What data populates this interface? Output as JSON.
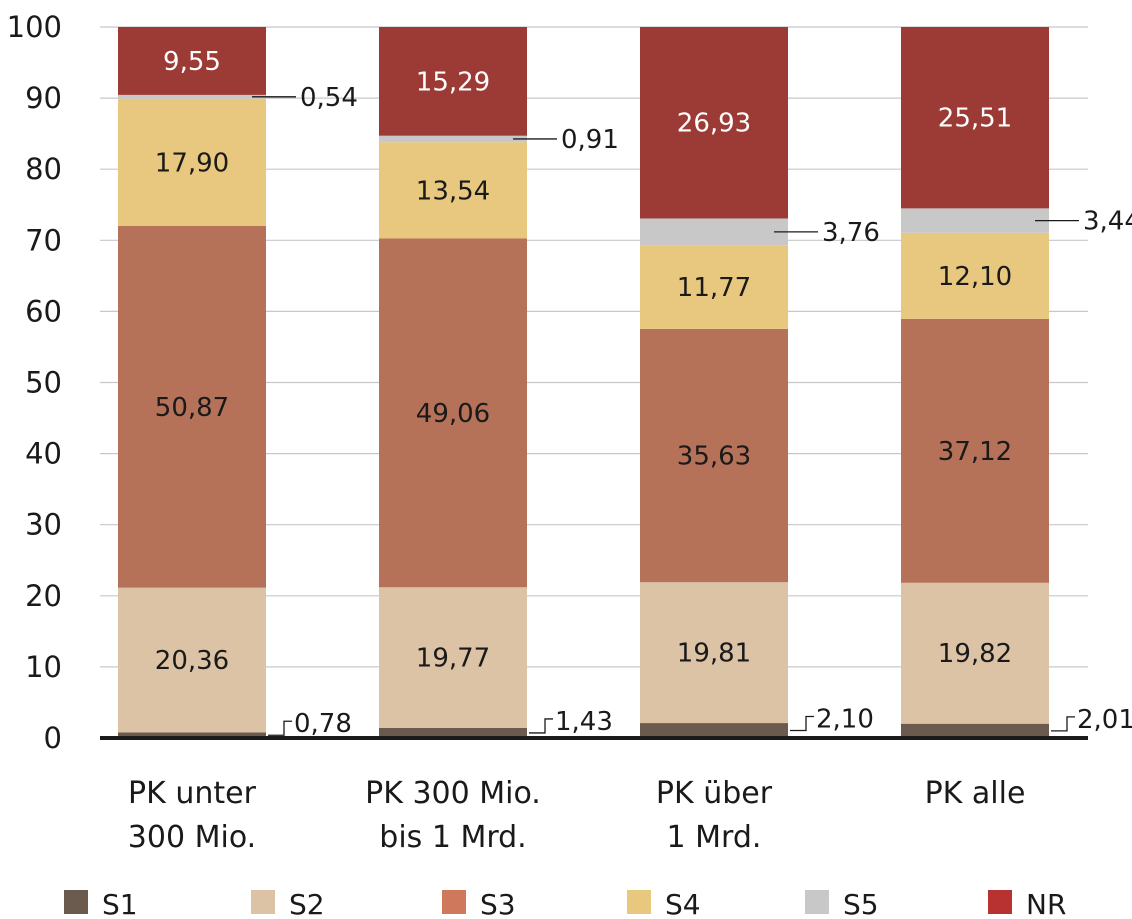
{
  "chart_data": {
    "type": "bar",
    "stacked": true,
    "title": "",
    "xlabel": "",
    "ylabel": "",
    "ylim": [
      0,
      100
    ],
    "yticks": [
      0,
      10,
      20,
      30,
      40,
      50,
      60,
      70,
      80,
      90,
      100
    ],
    "grid": true,
    "legend_position": "bottom",
    "categories": [
      [
        "PK unter",
        "300 Mio."
      ],
      [
        "PK 300 Mio.",
        "bis 1 Mrd."
      ],
      [
        "PK über",
        "1 Mrd."
      ],
      [
        "PK alle",
        ""
      ]
    ],
    "series": [
      {
        "name": "S1",
        "color": "#6b5a4e",
        "values": [
          0.78,
          1.43,
          2.1,
          2.01
        ],
        "labels": [
          "0,78",
          "1,43",
          "2,10",
          "2,01"
        ]
      },
      {
        "name": "S2",
        "color": "#dcc3a6",
        "values": [
          20.36,
          19.77,
          19.81,
          19.82
        ],
        "labels": [
          "20,36",
          "19,77",
          "19,81",
          "19,82"
        ]
      },
      {
        "name": "S3",
        "color": "#b57258",
        "values": [
          50.87,
          49.06,
          35.63,
          37.12
        ],
        "labels": [
          "50,87",
          "49,06",
          "35,63",
          "37,12"
        ]
      },
      {
        "name": "S4",
        "color": "#e8c77f",
        "values": [
          17.9,
          13.54,
          11.77,
          12.1
        ],
        "labels": [
          "17,90",
          "13,54",
          "11,77",
          "12,10"
        ]
      },
      {
        "name": "S5",
        "color": "#c8c8c8",
        "values": [
          0.54,
          0.91,
          3.76,
          3.44
        ],
        "labels": [
          "0,54",
          "0,91",
          "3,76",
          "3,44"
        ]
      },
      {
        "name": "NR",
        "color": "#9c3b35",
        "values": [
          9.55,
          15.29,
          26.93,
          25.51
        ],
        "labels": [
          "9,55",
          "15,29",
          "26,93",
          "25,51"
        ]
      }
    ],
    "legend_colors": [
      "#6b5a4e",
      "#dcc3a6",
      "#d0785c",
      "#e8c77f",
      "#c8c8c8",
      "#b83232"
    ]
  }
}
